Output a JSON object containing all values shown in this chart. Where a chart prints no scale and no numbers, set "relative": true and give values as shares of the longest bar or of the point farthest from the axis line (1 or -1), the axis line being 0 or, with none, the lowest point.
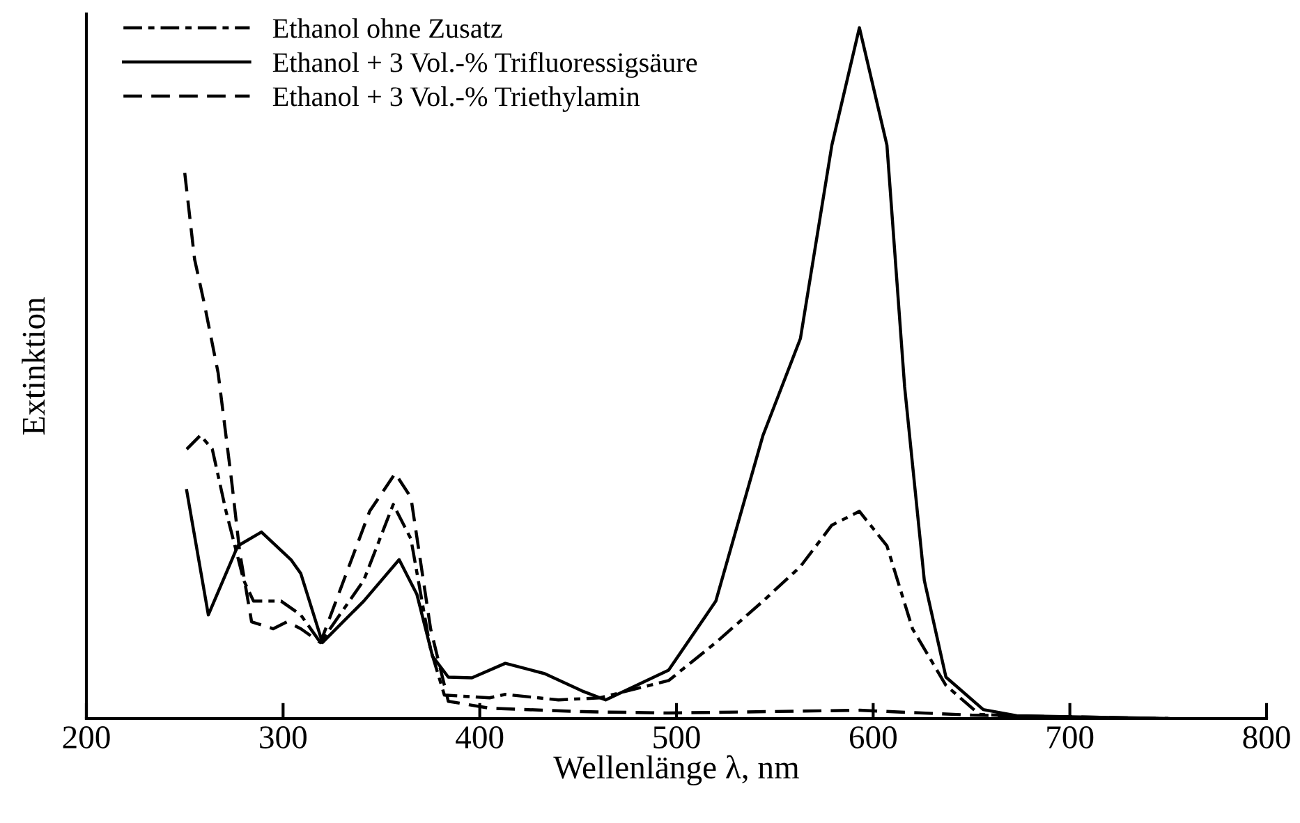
{
  "chart_data": {
    "type": "line",
    "relative": true,
    "xlabel": "Wellenlänge λ, nm",
    "ylabel": "Extinktion",
    "xlim": [
      200,
      800
    ],
    "xticks": [
      200,
      300,
      400,
      500,
      600,
      700,
      800
    ],
    "grid": false,
    "legend": "top left",
    "marker": "none",
    "tick_labels": "x",
    "series": [
      {
        "name": "Ethanol ohne Zusatz",
        "color": "#000000",
        "line_style": "dashdot",
        "x": [
          251,
          258,
          264,
          271,
          280,
          285,
          299,
          309,
          319,
          341,
          356,
          365,
          375,
          382,
          405,
          413,
          440,
          461,
          496,
          520,
          544,
          563,
          579,
          593,
          607,
          620,
          637,
          654,
          700,
          750
        ],
        "values": [
          0.39,
          0.41,
          0.39,
          0.3,
          0.2,
          0.17,
          0.17,
          0.15,
          0.11,
          0.2,
          0.31,
          0.26,
          0.1,
          0.034,
          0.03,
          0.035,
          0.027,
          0.03,
          0.055,
          0.11,
          0.17,
          0.22,
          0.28,
          0.3,
          0.25,
          0.13,
          0.048,
          0.006,
          0,
          0
        ]
      },
      {
        "name": "Ethanol + 3 Vol.-% Trifluoressigsäure",
        "color": "#000000",
        "line_style": "solid",
        "x": [
          251,
          262,
          277,
          289,
          304,
          309,
          320,
          341,
          359,
          368,
          376,
          384,
          396,
          413,
          433,
          452,
          464,
          496,
          520,
          544,
          563,
          579,
          593,
          607,
          616,
          626,
          637,
          656,
          673,
          750
        ],
        "values": [
          0.33,
          0.15,
          0.25,
          0.27,
          0.23,
          0.21,
          0.11,
          0.17,
          0.23,
          0.18,
          0.09,
          0.06,
          0.059,
          0.08,
          0.065,
          0.04,
          0.027,
          0.07,
          0.17,
          0.41,
          0.55,
          0.83,
          1.0,
          0.83,
          0.48,
          0.2,
          0.06,
          0.013,
          0.004,
          0
        ]
      },
      {
        "name": "Ethanol + 3 Vol.-% Triethylamin",
        "color": "#000000",
        "line_style": "dashed",
        "x": [
          250,
          255,
          260,
          267,
          274,
          278,
          284,
          295,
          302,
          309,
          319,
          344,
          357,
          365,
          375,
          384,
          405,
          452,
          496,
          593,
          650,
          750
        ],
        "values": [
          0.79,
          0.665,
          0.6,
          0.5,
          0.34,
          0.24,
          0.14,
          0.13,
          0.14,
          0.13,
          0.11,
          0.3,
          0.355,
          0.32,
          0.13,
          0.025,
          0.015,
          0.01,
          0.008,
          0.012,
          0.005,
          0
        ]
      }
    ]
  }
}
